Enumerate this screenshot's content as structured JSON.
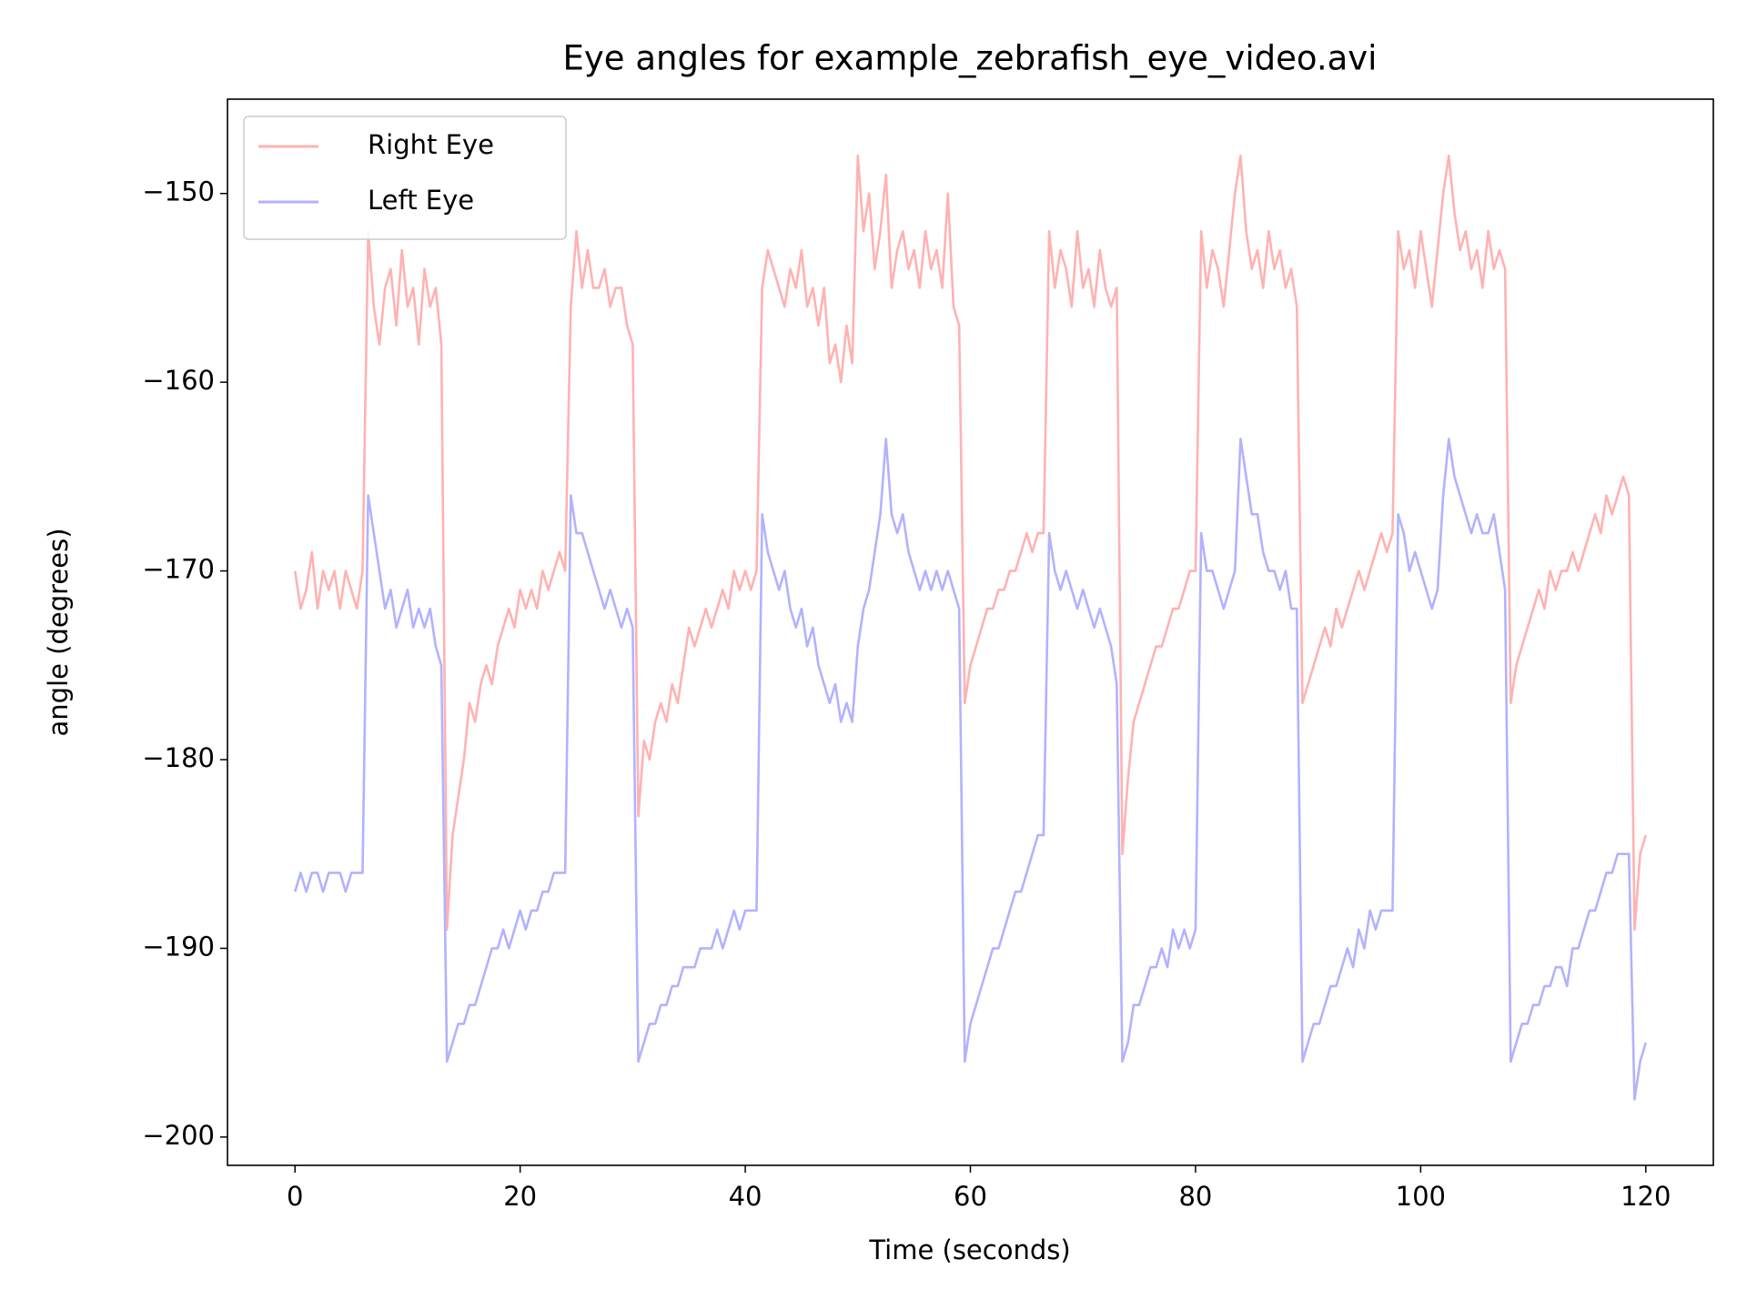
{
  "chart_data": {
    "type": "line",
    "title": "Eye angles for example_zebrafish_eye_video.avi",
    "xlabel": "Time (seconds)",
    "ylabel": "angle (degrees)",
    "xlim": [
      -6,
      126
    ],
    "ylim": [
      -201.5,
      -145
    ],
    "xticks": [
      0,
      20,
      40,
      60,
      80,
      100,
      120
    ],
    "yticks": [
      {
        "value": -150,
        "label": "−150"
      },
      {
        "value": -160,
        "label": "−160"
      },
      {
        "value": -170,
        "label": "−170"
      },
      {
        "value": -180,
        "label": "−180"
      },
      {
        "value": -190,
        "label": "−190"
      },
      {
        "value": -200,
        "label": "−200"
      }
    ],
    "grid": false,
    "legend": "upper left",
    "x": [
      0,
      0.5,
      1,
      1.5,
      2,
      2.5,
      3,
      3.5,
      4,
      4.5,
      5,
      5.5,
      6,
      6.5,
      7,
      7.5,
      8,
      8.5,
      9,
      9.5,
      10,
      10.5,
      11,
      11.5,
      12,
      12.5,
      13,
      13.5,
      14,
      14.5,
      15,
      15.5,
      16,
      16.5,
      17,
      17.5,
      18,
      18.5,
      19,
      19.5,
      20,
      20.5,
      21,
      21.5,
      22,
      22.5,
      23,
      23.5,
      24,
      24.5,
      25,
      25.5,
      26,
      26.5,
      27,
      27.5,
      28,
      28.5,
      29,
      29.5,
      30,
      30.5,
      31,
      31.5,
      32,
      32.5,
      33,
      33.5,
      34,
      34.5,
      35,
      35.5,
      36,
      36.5,
      37,
      37.5,
      38,
      38.5,
      39,
      39.5,
      40,
      40.5,
      41,
      41.5,
      42,
      42.5,
      43,
      43.5,
      44,
      44.5,
      45,
      45.5,
      46,
      46.5,
      47,
      47.5,
      48,
      48.5,
      49,
      49.5,
      50,
      50.5,
      51,
      51.5,
      52,
      52.5,
      53,
      53.5,
      54,
      54.5,
      55,
      55.5,
      56,
      56.5,
      57,
      57.5,
      58,
      58.5,
      59,
      59.5,
      60,
      60.5,
      61,
      61.5,
      62,
      62.5,
      63,
      63.5,
      64,
      64.5,
      65,
      65.5,
      66,
      66.5,
      67,
      67.5,
      68,
      68.5,
      69,
      69.5,
      70,
      70.5,
      71,
      71.5,
      72,
      72.5,
      73,
      73.5,
      74,
      74.5,
      75,
      75.5,
      76,
      76.5,
      77,
      77.5,
      78,
      78.5,
      79,
      79.5,
      80,
      80.5,
      81,
      81.5,
      82,
      82.5,
      83,
      83.5,
      84,
      84.5,
      85,
      85.5,
      86,
      86.5,
      87,
      87.5,
      88,
      88.5,
      89,
      89.5,
      90,
      90.5,
      91,
      91.5,
      92,
      92.5,
      93,
      93.5,
      94,
      94.5,
      95,
      95.5,
      96,
      96.5,
      97,
      97.5,
      98,
      98.5,
      99,
      99.5,
      100,
      100.5,
      101,
      101.5,
      102,
      102.5,
      103,
      103.5,
      104,
      104.5,
      105,
      105.5,
      106,
      106.5,
      107,
      107.5,
      108,
      108.5,
      109,
      109.5,
      110,
      110.5,
      111,
      111.5,
      112,
      112.5,
      113,
      113.5,
      114,
      114.5,
      115,
      115.5,
      116,
      116.5,
      117,
      117.5,
      118,
      118.5,
      119,
      119.5,
      120
    ],
    "series": [
      {
        "name": "Right Eye",
        "color": "#ffb2b2",
        "values": [
          -170,
          -172,
          -171,
          -169,
          -172,
          -170,
          -171,
          -170,
          -172,
          -170,
          -171,
          -172,
          -170,
          -152,
          -156,
          -158,
          -155,
          -154,
          -157,
          -153,
          -156,
          -155,
          -158,
          -154,
          -156,
          -155,
          -158,
          -189,
          -184,
          -182,
          -180,
          -177,
          -178,
          -176,
          -175,
          -176,
          -174,
          -173,
          -172,
          -173,
          -171,
          -172,
          -171,
          -172,
          -170,
          -171,
          -170,
          -169,
          -170,
          -156,
          -152,
          -155,
          -153,
          -155,
          -155,
          -154,
          -156,
          -155,
          -155,
          -157,
          -158,
          -183,
          -179,
          -180,
          -178,
          -177,
          -178,
          -176,
          -177,
          -175,
          -173,
          -174,
          -173,
          -172,
          -173,
          -172,
          -171,
          -172,
          -170,
          -171,
          -170,
          -171,
          -170,
          -155,
          -153,
          -154,
          -155,
          -156,
          -154,
          -155,
          -153,
          -156,
          -155,
          -157,
          -155,
          -159,
          -158,
          -160,
          -157,
          -159,
          -148,
          -152,
          -150,
          -154,
          -152,
          -149,
          -155,
          -153,
          -152,
          -154,
          -153,
          -155,
          -152,
          -154,
          -153,
          -155,
          -150,
          -156,
          -157,
          -177,
          -175,
          -174,
          -173,
          -172,
          -172,
          -171,
          -171,
          -170,
          -170,
          -169,
          -168,
          -169,
          -168,
          -168,
          -152,
          -155,
          -153,
          -154,
          -156,
          -152,
          -155,
          -154,
          -156,
          -153,
          -155,
          -156,
          -155,
          -185,
          -181,
          -178,
          -177,
          -176,
          -175,
          -174,
          -174,
          -173,
          -172,
          -172,
          -171,
          -170,
          -170,
          -152,
          -155,
          -153,
          -154,
          -156,
          -153,
          -150,
          -148,
          -152,
          -154,
          -153,
          -155,
          -152,
          -154,
          -153,
          -155,
          -154,
          -156,
          -177,
          -176,
          -175,
          -174,
          -173,
          -174,
          -172,
          -173,
          -172,
          -171,
          -170,
          -171,
          -170,
          -169,
          -168,
          -169,
          -168,
          -152,
          -154,
          -153,
          -155,
          -152,
          -154,
          -156,
          -153,
          -150,
          -148,
          -151,
          -153,
          -152,
          -154,
          -153,
          -155,
          -152,
          -154,
          -153,
          -154,
          -177,
          -175,
          -174,
          -173,
          -172,
          -171,
          -172,
          -170,
          -171,
          -170,
          -170,
          -169,
          -170,
          -169,
          -168,
          -167,
          -168,
          -166,
          -167,
          -166,
          -165,
          -166,
          -189,
          -185,
          -184
        ]
      },
      {
        "name": "Left Eye",
        "color": "#b2b2ff",
        "values": [
          -187,
          -186,
          -187,
          -186,
          -186,
          -187,
          -186,
          -186,
          -186,
          -187,
          -186,
          -186,
          -186,
          -166,
          -168,
          -170,
          -172,
          -171,
          -173,
          -172,
          -171,
          -173,
          -172,
          -173,
          -172,
          -174,
          -175,
          -196,
          -195,
          -194,
          -194,
          -193,
          -193,
          -192,
          -191,
          -190,
          -190,
          -189,
          -190,
          -189,
          -188,
          -189,
          -188,
          -188,
          -187,
          -187,
          -186,
          -186,
          -186,
          -166,
          -168,
          -168,
          -169,
          -170,
          -171,
          -172,
          -171,
          -172,
          -173,
          -172,
          -173,
          -196,
          -195,
          -194,
          -194,
          -193,
          -193,
          -192,
          -192,
          -191,
          -191,
          -191,
          -190,
          -190,
          -190,
          -189,
          -190,
          -189,
          -188,
          -189,
          -188,
          -188,
          -188,
          -167,
          -169,
          -170,
          -171,
          -170,
          -172,
          -173,
          -172,
          -174,
          -173,
          -175,
          -176,
          -177,
          -176,
          -178,
          -177,
          -178,
          -174,
          -172,
          -171,
          -169,
          -167,
          -163,
          -167,
          -168,
          -167,
          -169,
          -170,
          -171,
          -170,
          -171,
          -170,
          -171,
          -170,
          -171,
          -172,
          -196,
          -194,
          -193,
          -192,
          -191,
          -190,
          -190,
          -189,
          -188,
          -187,
          -187,
          -186,
          -185,
          -184,
          -184,
          -168,
          -170,
          -171,
          -170,
          -171,
          -172,
          -171,
          -172,
          -173,
          -172,
          -173,
          -174,
          -176,
          -196,
          -195,
          -193,
          -193,
          -192,
          -191,
          -191,
          -190,
          -191,
          -189,
          -190,
          -189,
          -190,
          -189,
          -168,
          -170,
          -170,
          -171,
          -172,
          -171,
          -170,
          -163,
          -165,
          -167,
          -167,
          -169,
          -170,
          -170,
          -171,
          -170,
          -172,
          -172,
          -196,
          -195,
          -194,
          -194,
          -193,
          -192,
          -192,
          -191,
          -190,
          -191,
          -189,
          -190,
          -188,
          -189,
          -188,
          -188,
          -188,
          -167,
          -168,
          -170,
          -169,
          -170,
          -171,
          -172,
          -171,
          -166,
          -163,
          -165,
          -166,
          -167,
          -168,
          -167,
          -168,
          -168,
          -167,
          -169,
          -171,
          -196,
          -195,
          -194,
          -194,
          -193,
          -193,
          -192,
          -192,
          -191,
          -191,
          -192,
          -190,
          -190,
          -189,
          -188,
          -188,
          -187,
          -186,
          -186,
          -185,
          -185,
          -185,
          -198,
          -196,
          -195
        ]
      }
    ]
  }
}
